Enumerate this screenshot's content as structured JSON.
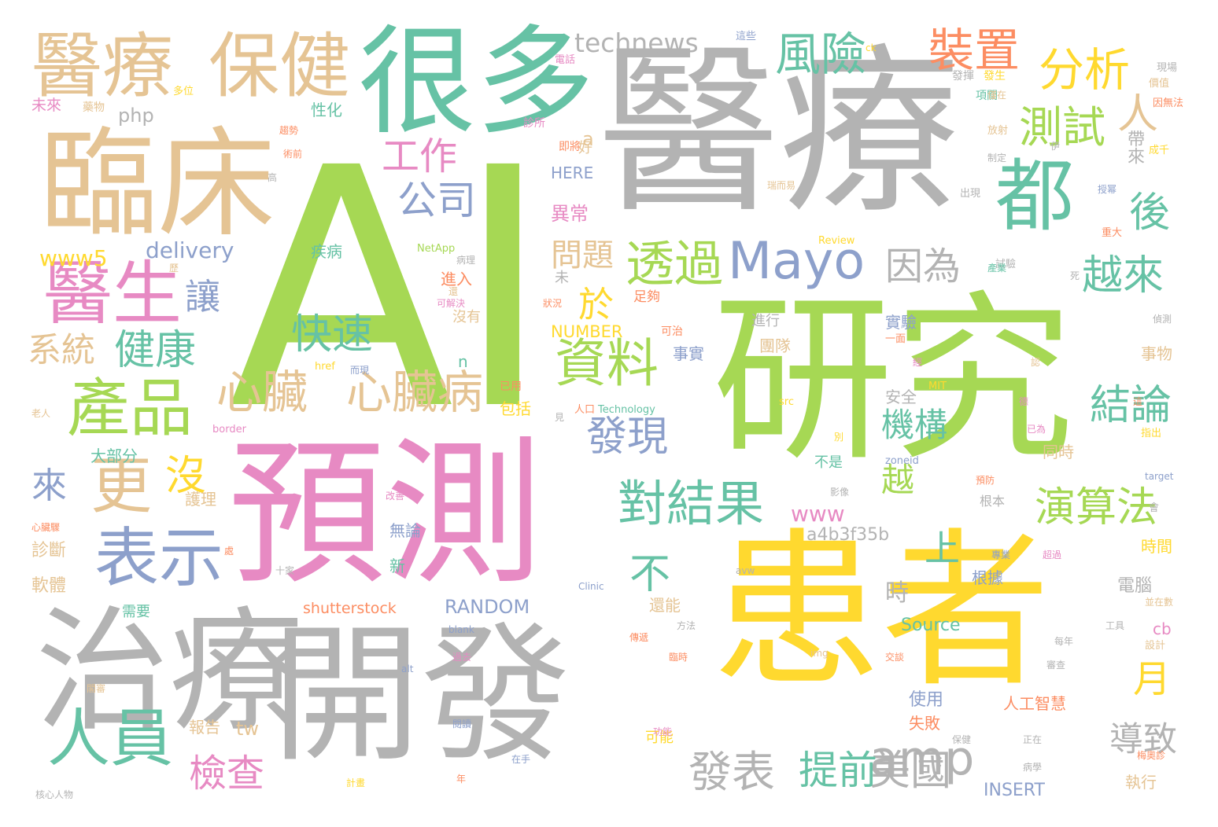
{
  "palette": {
    "green": "#a6d854",
    "gray": "#b3b3b3",
    "tan": "#e5c494",
    "teal": "#66c2a5",
    "pink": "#e78ac3",
    "yellow": "#ffd92f",
    "blue": "#8da0cb",
    "orange": "#fc8d62"
  },
  "words": [
    {
      "text": "AI",
      "color": "green"
    },
    {
      "text": "醫療",
      "color": "gray"
    },
    {
      "text": "研究",
      "color": "green"
    },
    {
      "text": "患者",
      "color": "yellow"
    },
    {
      "text": "預測",
      "color": "pink"
    },
    {
      "text": "開發",
      "color": "gray"
    },
    {
      "text": "治療",
      "color": "gray"
    },
    {
      "text": "臨床",
      "color": "tan"
    },
    {
      "text": "很多",
      "color": "teal"
    },
    {
      "text": "醫療",
      "color": "tan"
    },
    {
      "text": "保健",
      "color": "tan"
    },
    {
      "text": "都",
      "color": "teal"
    },
    {
      "text": "醫生",
      "color": "pink"
    },
    {
      "text": "產品",
      "color": "green"
    },
    {
      "text": "表示",
      "color": "blue"
    },
    {
      "text": "人員",
      "color": "teal"
    },
    {
      "text": "更",
      "color": "tan"
    },
    {
      "text": "Mayo",
      "color": "blue"
    },
    {
      "text": "amp",
      "color": "gray"
    },
    {
      "text": "風險",
      "color": "teal"
    },
    {
      "text": "裝置",
      "color": "orange"
    },
    {
      "text": "分析",
      "color": "yellow"
    },
    {
      "text": "測試",
      "color": "green"
    },
    {
      "text": "人",
      "color": "tan"
    },
    {
      "text": "technews",
      "color": "gray"
    },
    {
      "text": "資料",
      "color": "green"
    },
    {
      "text": "透過",
      "color": "green"
    },
    {
      "text": "心臟病",
      "color": "tan"
    },
    {
      "text": "心臟",
      "color": "tan"
    },
    {
      "text": "對結果",
      "color": "teal"
    },
    {
      "text": "發現",
      "color": "blue"
    },
    {
      "text": "發表",
      "color": "gray"
    },
    {
      "text": "美國",
      "color": "gray"
    },
    {
      "text": "提前",
      "color": "teal"
    },
    {
      "text": "演算法",
      "color": "green"
    },
    {
      "text": "結論",
      "color": "teal"
    },
    {
      "text": "越來",
      "color": "teal"
    },
    {
      "text": "後",
      "color": "teal"
    },
    {
      "text": "因為",
      "color": "gray"
    },
    {
      "text": "檢查",
      "color": "pink"
    },
    {
      "text": "健康",
      "color": "teal"
    },
    {
      "text": "系統",
      "color": "tan"
    },
    {
      "text": "快速",
      "color": "teal"
    },
    {
      "text": "公司",
      "color": "blue"
    },
    {
      "text": "工作",
      "color": "pink"
    },
    {
      "text": "沒",
      "color": "yellow"
    },
    {
      "text": "來",
      "color": "blue"
    },
    {
      "text": "機構",
      "color": "teal"
    },
    {
      "text": "越",
      "color": "green"
    },
    {
      "text": "上",
      "color": "teal"
    },
    {
      "text": "不",
      "color": "teal"
    },
    {
      "text": "於",
      "color": "yellow"
    },
    {
      "text": "讓",
      "color": "blue"
    },
    {
      "text": "問題",
      "color": "tan"
    },
    {
      "text": "導致",
      "color": "gray"
    },
    {
      "text": "月",
      "color": "yellow"
    },
    {
      "text": "www5",
      "color": "yellow"
    },
    {
      "text": "delivery",
      "color": "blue"
    },
    {
      "text": "www",
      "color": "pink"
    },
    {
      "text": "a4b3f35b",
      "color": "gray"
    },
    {
      "text": "RANDOM",
      "color": "blue"
    },
    {
      "text": "Source",
      "color": "teal"
    },
    {
      "text": "shutterstock",
      "color": "orange"
    },
    {
      "text": "NUMBER",
      "color": "yellow"
    },
    {
      "text": "INSERT",
      "color": "blue"
    },
    {
      "text": "HERE",
      "color": "blue"
    },
    {
      "text": "php",
      "color": "gray"
    },
    {
      "text": "tw",
      "color": "tan"
    },
    {
      "text": "cb",
      "color": "pink"
    },
    {
      "text": "a",
      "color": "tan"
    },
    {
      "text": "n",
      "color": "teal"
    },
    {
      "text": "帶來",
      "color": "gray"
    },
    {
      "text": "時",
      "color": "gray"
    },
    {
      "text": "大部分",
      "color": "teal"
    },
    {
      "text": "護理",
      "color": "tan"
    },
    {
      "text": "診斷",
      "color": "tan"
    },
    {
      "text": "軟體",
      "color": "tan"
    },
    {
      "text": "報告",
      "color": "tan"
    },
    {
      "text": "電腦",
      "color": "gray"
    },
    {
      "text": "使用",
      "color": "blue"
    },
    {
      "text": "失敗",
      "color": "orange"
    },
    {
      "text": "執行",
      "color": "tan"
    },
    {
      "text": "時間",
      "color": "yellow"
    },
    {
      "text": "同時",
      "color": "tan"
    },
    {
      "text": "事物",
      "color": "tan"
    },
    {
      "text": "實驗",
      "color": "blue"
    },
    {
      "text": "團隊",
      "color": "tan"
    },
    {
      "text": "異常",
      "color": "pink"
    },
    {
      "text": "進入",
      "color": "orange"
    },
    {
      "text": "安全",
      "color": "gray"
    },
    {
      "text": "根據",
      "color": "blue"
    },
    {
      "text": "還能",
      "color": "tan"
    },
    {
      "text": "疾病",
      "color": "teal"
    },
    {
      "text": "性化",
      "color": "teal"
    },
    {
      "text": "包括",
      "color": "yellow"
    },
    {
      "text": "人工智慧",
      "color": "orange"
    },
    {
      "text": "新",
      "color": "teal"
    },
    {
      "text": "無論",
      "color": "blue"
    },
    {
      "text": "好",
      "color": "tan"
    },
    {
      "text": "事實",
      "color": "blue"
    },
    {
      "text": "未來",
      "color": "pink"
    },
    {
      "text": "多位",
      "color": "yellow"
    },
    {
      "text": "藥物",
      "color": "tan"
    },
    {
      "text": "需要",
      "color": "teal"
    },
    {
      "text": "沒有",
      "color": "tan"
    },
    {
      "text": "未",
      "color": "gray"
    },
    {
      "text": "足夠",
      "color": "orange"
    },
    {
      "text": "不是",
      "color": "teal"
    },
    {
      "text": "可能",
      "color": "yellow"
    },
    {
      "text": "根本",
      "color": "gray"
    },
    {
      "text": "進行",
      "color": "gray"
    },
    {
      "text": "診所",
      "color": "pink"
    },
    {
      "text": "即將",
      "color": "orange"
    },
    {
      "text": "電話",
      "color": "pink"
    },
    {
      "text": "發揮",
      "color": "gray"
    },
    {
      "text": "項關",
      "color": "teal"
    },
    {
      "text": "價值",
      "color": "tan"
    },
    {
      "text": "發生",
      "color": "yellow"
    },
    {
      "text": "因無法",
      "color": "orange"
    },
    {
      "text": "成千",
      "color": "yellow"
    },
    {
      "text": "放射",
      "color": "tan"
    },
    {
      "text": "出現",
      "color": "gray"
    },
    {
      "text": "重大",
      "color": "orange"
    },
    {
      "text": "試驗",
      "color": "gray"
    },
    {
      "text": "一面",
      "color": "orange"
    },
    {
      "text": "可治",
      "color": "orange"
    },
    {
      "text": "已用",
      "color": "orange"
    },
    {
      "text": "人口",
      "color": "orange"
    },
    {
      "text": "Technology",
      "color": "teal"
    },
    {
      "text": "border",
      "color": "pink"
    },
    {
      "text": "src",
      "color": "yellow"
    },
    {
      "text": "zoneid",
      "color": "blue"
    },
    {
      "text": "target",
      "color": "blue"
    },
    {
      "text": "MIT",
      "color": "yellow"
    },
    {
      "text": "href",
      "color": "yellow"
    },
    {
      "text": "NetApp",
      "color": "green"
    },
    {
      "text": "Review",
      "color": "yellow"
    },
    {
      "text": "avw",
      "color": "gray"
    },
    {
      "text": "Clinic",
      "color": "blue"
    },
    {
      "text": "blank",
      "color": "blue"
    },
    {
      "text": "img",
      "color": "tan"
    },
    {
      "text": "alt",
      "color": "blue"
    },
    {
      "text": "指出",
      "color": "yellow"
    },
    {
      "text": "會",
      "color": "gray"
    },
    {
      "text": "專業",
      "color": "blue"
    },
    {
      "text": "超過",
      "color": "pink"
    },
    {
      "text": "方法",
      "color": "gray"
    },
    {
      "text": "工具",
      "color": "gray"
    },
    {
      "text": "每年",
      "color": "gray"
    },
    {
      "text": "設計",
      "color": "tan"
    },
    {
      "text": "審查",
      "color": "gray"
    },
    {
      "text": "交談",
      "color": "orange"
    },
    {
      "text": "臨時",
      "color": "orange"
    },
    {
      "text": "功能",
      "color": "pink"
    },
    {
      "text": "閱讀",
      "color": "blue"
    },
    {
      "text": "計畫",
      "color": "yellow"
    },
    {
      "text": "年",
      "color": "orange"
    },
    {
      "text": "在手",
      "color": "blue"
    },
    {
      "text": "正在",
      "color": "gray"
    },
    {
      "text": "保健",
      "color": "gray"
    },
    {
      "text": "梅奧診",
      "color": "orange"
    },
    {
      "text": "核心人物",
      "color": "gray"
    },
    {
      "text": "老人",
      "color": "tan"
    },
    {
      "text": "心臟驟",
      "color": "orange"
    },
    {
      "text": "十家",
      "color": "gray"
    },
    {
      "text": "改善",
      "color": "pink"
    },
    {
      "text": "術前",
      "color": "orange"
    },
    {
      "text": "趨勢",
      "color": "orange"
    },
    {
      "text": "病理",
      "color": "gray"
    },
    {
      "text": "狀況",
      "color": "orange"
    },
    {
      "text": "可解決",
      "color": "pink"
    },
    {
      "text": "影像",
      "color": "gray"
    },
    {
      "text": "已為",
      "color": "pink"
    },
    {
      "text": "過去",
      "color": "pink"
    },
    {
      "text": "而現",
      "color": "blue"
    },
    {
      "text": "產業",
      "color": "teal"
    },
    {
      "text": "偵測",
      "color": "gray"
    },
    {
      "text": "並在數",
      "color": "tan"
    },
    {
      "text": "病學",
      "color": "gray"
    },
    {
      "text": "現場",
      "color": "gray"
    },
    {
      "text": "這些",
      "color": "blue"
    },
    {
      "text": "傳遞",
      "color": "orange"
    },
    {
      "text": "預防",
      "color": "orange"
    },
    {
      "text": "別",
      "color": "yellow"
    },
    {
      "text": "見",
      "color": "gray"
    },
    {
      "text": "德",
      "color": "pink"
    },
    {
      "text": "死",
      "color": "gray"
    },
    {
      "text": "伊",
      "color": "gray"
    },
    {
      "text": "高",
      "color": "gray"
    },
    {
      "text": "還",
      "color": "tan"
    },
    {
      "text": "這",
      "color": "orange"
    },
    {
      "text": "ck",
      "color": "yellow"
    },
    {
      "text": "瑞而易",
      "color": "tan"
    },
    {
      "text": "授幂",
      "color": "blue"
    },
    {
      "text": "制定",
      "color": "gray"
    },
    {
      "text": "僅在",
      "color": "tan"
    },
    {
      "text": "經",
      "color": "pink"
    },
    {
      "text": "認",
      "color": "tan"
    },
    {
      "text": "歷",
      "color": "tan"
    },
    {
      "text": "閣審",
      "color": "tan"
    },
    {
      "text": "處",
      "color": "orange"
    }
  ]
}
